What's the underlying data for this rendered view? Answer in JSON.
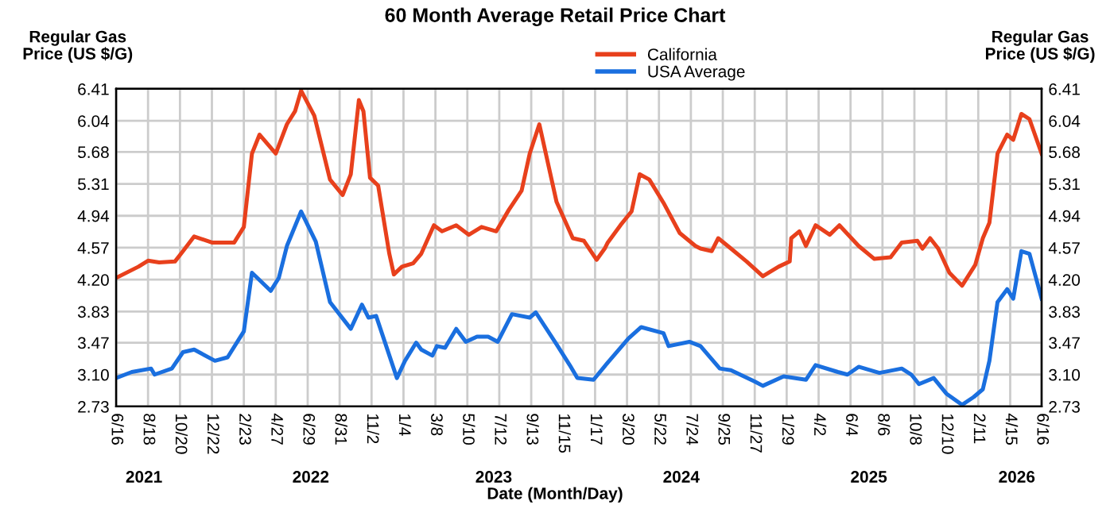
{
  "chart_data": {
    "type": "line",
    "title": "60 Month Average Retail Price Chart",
    "xlabel": "Date (Month/Day)",
    "ylabel": "Regular Gas\nPrice (US $/G)",
    "y2label": "Regular Gas\nPrice (US $/G)",
    "xlim": [
      "2021-06-16",
      "2026-06-16"
    ],
    "xticks": [
      {
        "value": "2021-06-16",
        "label": "6/16"
      },
      {
        "value": "2021-08-18",
        "label": "8/18"
      },
      {
        "value": "2021-10-20",
        "label": "10/20"
      },
      {
        "value": "2021-12-22",
        "label": "12/22"
      },
      {
        "value": "2022-02-23",
        "label": "2/23"
      },
      {
        "value": "2022-04-27",
        "label": "4/27"
      },
      {
        "value": "2022-06-29",
        "label": "6/29"
      },
      {
        "value": "2022-08-31",
        "label": "8/31"
      },
      {
        "value": "2022-11-02",
        "label": "11/2"
      },
      {
        "value": "2023-01-04",
        "label": "1/4"
      },
      {
        "value": "2023-03-08",
        "label": "3/8"
      },
      {
        "value": "2023-05-10",
        "label": "5/10"
      },
      {
        "value": "2023-07-12",
        "label": "7/12"
      },
      {
        "value": "2023-09-13",
        "label": "9/13"
      },
      {
        "value": "2023-11-15",
        "label": "11/15"
      },
      {
        "value": "2024-01-17",
        "label": "1/17"
      },
      {
        "value": "2024-03-20",
        "label": "3/20"
      },
      {
        "value": "2024-05-22",
        "label": "5/22"
      },
      {
        "value": "2024-07-24",
        "label": "7/24"
      },
      {
        "value": "2024-09-25",
        "label": "9/25"
      },
      {
        "value": "2024-11-27",
        "label": "11/27"
      },
      {
        "value": "2025-01-29",
        "label": "1/29"
      },
      {
        "value": "2025-04-02",
        "label": "4/2"
      },
      {
        "value": "2025-06-04",
        "label": "6/4"
      },
      {
        "value": "2025-08-06",
        "label": "8/6"
      },
      {
        "value": "2025-10-08",
        "label": "10/8"
      },
      {
        "value": "2025-12-10",
        "label": "12/10"
      },
      {
        "value": "2026-02-11",
        "label": "2/11"
      },
      {
        "value": "2026-04-15",
        "label": "4/15"
      },
      {
        "value": "2026-06-16",
        "label": "6/16"
      }
    ],
    "x2lim": [
      "2021-06-16",
      "2026-06-16"
    ],
    "x2ticks": [
      {
        "value": "2021-08-10",
        "label": "2021"
      },
      {
        "value": "2022-07-05",
        "label": "2022"
      },
      {
        "value": "2023-07-01",
        "label": "2023"
      },
      {
        "value": "2024-07-05",
        "label": "2024"
      },
      {
        "value": "2025-07-10",
        "label": "2025"
      },
      {
        "value": "2026-04-28",
        "label": "2026"
      }
    ],
    "ylim": [
      2.73,
      6.41
    ],
    "yticks": [
      2.73,
      {
        "value": 3.1,
        "label": "3.10"
      },
      3.47,
      3.83,
      {
        "value": 4.2,
        "label": "4.20"
      },
      4.57,
      4.94,
      5.31,
      5.68,
      6.04,
      6.41
    ],
    "y2lim": [
      2.73,
      6.41
    ],
    "y2ticks": [
      2.73,
      {
        "value": 3.1,
        "label": "3.10"
      },
      3.47,
      3.83,
      {
        "value": 4.2,
        "label": "4.20"
      },
      4.57,
      4.94,
      5.31,
      5.68,
      6.04,
      6.41
    ],
    "grid": true,
    "legend": "top",
    "marker": "none",
    "line_style": "solid",
    "series": [
      {
        "name": "California",
        "color": "#e8401c",
        "x": [
          "2021-06-16",
          "2021-07-30",
          "2021-08-18",
          "2021-09-09",
          "2021-10-10",
          "2021-10-26",
          "2021-11-17",
          "2021-12-22",
          "2022-02-04",
          "2022-02-23",
          "2022-03-11",
          "2022-03-26",
          "2022-04-27",
          "2022-05-19",
          "2022-06-04",
          "2022-06-16",
          "2022-07-12",
          "2022-08-12",
          "2022-09-06",
          "2022-09-22",
          "2022-10-08",
          "2022-10-17",
          "2022-10-30",
          "2022-11-15",
          "2022-12-07",
          "2022-12-16",
          "2023-01-01",
          "2023-01-23",
          "2023-02-08",
          "2023-03-05",
          "2023-03-21",
          "2023-04-18",
          "2023-05-13",
          "2023-06-07",
          "2023-07-06",
          "2023-07-31",
          "2023-08-25",
          "2023-09-10",
          "2023-09-29",
          "2023-11-02",
          "2023-12-04",
          "2023-12-26",
          "2024-01-20",
          "2024-02-05",
          "2024-02-11",
          "2024-03-07",
          "2024-03-29",
          "2024-04-14",
          "2024-05-03",
          "2024-05-31",
          "2024-07-02",
          "2024-08-02",
          "2024-08-12",
          "2024-09-03",
          "2024-09-16",
          "2024-10-11",
          "2024-11-11",
          "2024-12-13",
          "2025-01-13",
          "2025-02-04",
          "2025-02-07",
          "2025-02-23",
          "2025-03-08",
          "2025-03-27",
          "2025-04-24",
          "2025-05-13",
          "2025-06-20",
          "2025-07-21",
          "2025-08-22",
          "2025-09-13",
          "2025-10-14",
          "2025-10-24",
          "2025-11-08",
          "2025-11-24",
          "2025-12-16",
          "2026-01-10",
          "2026-02-05",
          "2026-02-20",
          "2026-03-05",
          "2026-03-21",
          "2026-04-09",
          "2026-04-21",
          "2026-05-07",
          "2026-05-23",
          "2026-06-16"
        ],
        "values": [
          4.22,
          4.35,
          4.42,
          4.4,
          4.41,
          4.53,
          4.7,
          4.63,
          4.63,
          4.81,
          5.66,
          5.88,
          5.66,
          6.0,
          6.15,
          6.39,
          6.1,
          5.36,
          5.18,
          5.42,
          6.28,
          6.15,
          5.38,
          5.29,
          4.5,
          4.26,
          4.35,
          4.39,
          4.5,
          4.83,
          4.76,
          4.83,
          4.72,
          4.81,
          4.76,
          5.01,
          5.23,
          5.66,
          6.0,
          5.1,
          4.68,
          4.65,
          4.43,
          4.56,
          4.63,
          4.83,
          4.99,
          5.42,
          5.36,
          5.09,
          4.74,
          4.59,
          4.56,
          4.53,
          4.68,
          4.56,
          4.41,
          4.24,
          4.35,
          4.41,
          4.68,
          4.76,
          4.59,
          4.83,
          4.72,
          4.83,
          4.59,
          4.44,
          4.46,
          4.63,
          4.65,
          4.56,
          4.68,
          4.56,
          4.28,
          4.13,
          4.37,
          4.68,
          4.86,
          5.66,
          5.88,
          5.82,
          6.12,
          6.06,
          5.66
        ]
      },
      {
        "name": "USA Average",
        "color": "#1a6fdf",
        "x": [
          "2021-06-16",
          "2021-07-17",
          "2021-08-24",
          "2021-08-31",
          "2021-10-04",
          "2021-10-26",
          "2021-11-17",
          "2021-12-28",
          "2022-01-22",
          "2022-02-23",
          "2022-03-11",
          "2022-04-17",
          "2022-05-03",
          "2022-05-19",
          "2022-06-16",
          "2022-07-15",
          "2022-08-12",
          "2022-09-22",
          "2022-10-14",
          "2022-10-27",
          "2022-11-11",
          "2022-12-22",
          "2023-01-07",
          "2023-01-29",
          "2023-02-08",
          "2023-03-02",
          "2023-03-11",
          "2023-03-27",
          "2023-04-18",
          "2023-05-07",
          "2023-05-29",
          "2023-06-20",
          "2023-07-09",
          "2023-08-06",
          "2023-09-10",
          "2023-09-22",
          "2023-11-02",
          "2023-11-28",
          "2023-12-13",
          "2024-01-14",
          "2024-02-11",
          "2024-03-23",
          "2024-04-17",
          "2024-05-31",
          "2024-06-10",
          "2024-07-21",
          "2024-08-12",
          "2024-09-19",
          "2024-10-11",
          "2024-11-27",
          "2024-12-13",
          "2025-01-23",
          "2025-03-08",
          "2025-03-27",
          "2025-05-10",
          "2025-05-29",
          "2025-06-20",
          "2025-07-31",
          "2025-09-13",
          "2025-10-02",
          "2025-10-17",
          "2025-11-15",
          "2025-12-10",
          "2026-01-10",
          "2026-02-02",
          "2026-02-20",
          "2026-03-05",
          "2026-03-21",
          "2026-04-09",
          "2026-04-21",
          "2026-05-07",
          "2026-05-23",
          "2026-06-16"
        ],
        "values": [
          3.06,
          3.13,
          3.17,
          3.1,
          3.17,
          3.36,
          3.39,
          3.26,
          3.3,
          3.6,
          4.28,
          4.07,
          4.22,
          4.59,
          4.99,
          4.64,
          3.94,
          3.63,
          3.91,
          3.76,
          3.78,
          3.06,
          3.26,
          3.47,
          3.39,
          3.32,
          3.43,
          3.41,
          3.63,
          3.48,
          3.54,
          3.54,
          3.48,
          3.8,
          3.76,
          3.82,
          3.45,
          3.21,
          3.06,
          3.04,
          3.24,
          3.52,
          3.65,
          3.58,
          3.43,
          3.48,
          3.43,
          3.17,
          3.15,
          3.02,
          2.97,
          3.08,
          3.04,
          3.21,
          3.13,
          3.1,
          3.19,
          3.12,
          3.17,
          3.1,
          2.99,
          3.06,
          2.88,
          2.75,
          2.84,
          2.93,
          3.26,
          3.94,
          4.09,
          3.98,
          4.53,
          4.5,
          3.98
        ]
      }
    ]
  }
}
